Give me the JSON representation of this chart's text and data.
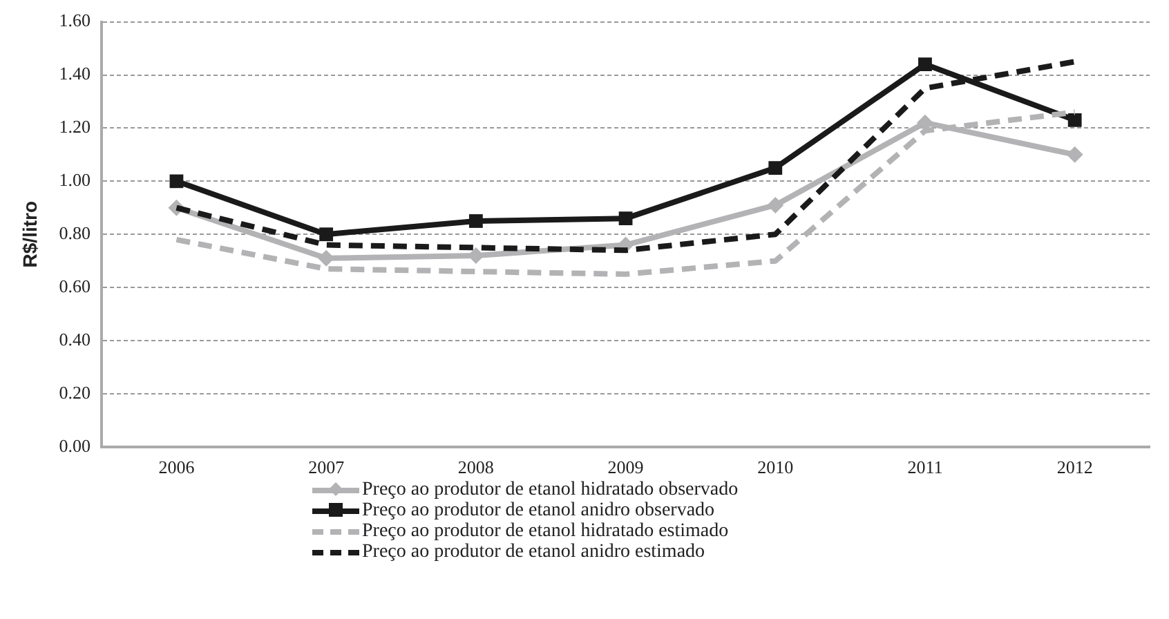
{
  "chart_data": {
    "type": "line",
    "ylabel": "R$/litro",
    "categories": [
      "2006",
      "2007",
      "2008",
      "2009",
      "2010",
      "2011",
      "2012"
    ],
    "series": [
      {
        "name": "Preço ao produtor de etanol hidratado observado",
        "color": "#b3b3b5",
        "values": [
          0.9,
          0.71,
          0.72,
          0.76,
          0.91,
          1.22,
          1.1
        ],
        "marker": "diamond",
        "line_style": "solid"
      },
      {
        "name": "Preço ao produtor de etanol anidro observado",
        "color": "#1a1a1a",
        "values": [
          1.0,
          0.8,
          0.85,
          0.86,
          1.05,
          1.44,
          1.23
        ],
        "marker": "square",
        "line_style": "solid"
      },
      {
        "name": "Preço ao produtor de etanol hidratado estimado",
        "color": "#b3b3b5",
        "values": [
          0.78,
          0.67,
          0.66,
          0.65,
          0.7,
          1.19,
          1.26
        ],
        "marker": "none",
        "line_style": "dashed"
      },
      {
        "name": "Preço ao produtor de etanol anidro estimado",
        "color": "#1a1a1a",
        "values": [
          0.9,
          0.76,
          0.75,
          0.74,
          0.8,
          1.35,
          1.45
        ],
        "marker": "none",
        "line_style": "dashed"
      }
    ],
    "ylim": [
      0,
      1.6
    ],
    "yticks": [
      {
        "value": 0,
        "label": "0.00"
      },
      {
        "value": 0.2,
        "label": "0.20"
      },
      {
        "value": 0.4,
        "label": "0.40"
      },
      {
        "value": 0.6,
        "label": "0.60"
      },
      {
        "value": 0.8,
        "label": "0.80"
      },
      {
        "value": 1.0,
        "label": "1.00"
      },
      {
        "value": 1.2,
        "label": "1.20"
      },
      {
        "value": 1.4,
        "label": "1.40"
      },
      {
        "value": 1.6,
        "label": "1.60"
      }
    ],
    "grid": "y",
    "legend": "bottom"
  }
}
